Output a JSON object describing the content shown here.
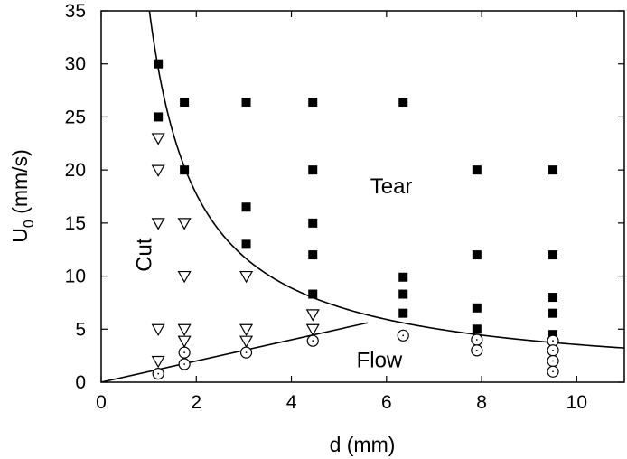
{
  "chart_data": {
    "type": "scatter",
    "xlabel": "d (mm)",
    "ylabel_main": "U",
    "ylabel_sub": "0",
    "ylabel_rest": " (mm/s)",
    "xlim": [
      0,
      11
    ],
    "ylim": [
      0,
      35
    ],
    "xticks": [
      0,
      2,
      4,
      6,
      8,
      10
    ],
    "yticks": [
      0,
      5,
      10,
      15,
      20,
      25,
      30,
      35
    ],
    "series": [
      {
        "marker": "filled-square",
        "points": [
          [
            1.2,
            30
          ],
          [
            1.2,
            25
          ],
          [
            1.75,
            26.4
          ],
          [
            1.75,
            20
          ],
          [
            3.05,
            26.4
          ],
          [
            3.05,
            16.5
          ],
          [
            3.05,
            13
          ],
          [
            4.45,
            26.4
          ],
          [
            4.45,
            20
          ],
          [
            4.45,
            15
          ],
          [
            4.45,
            12
          ],
          [
            4.45,
            8.3
          ],
          [
            6.35,
            26.4
          ],
          [
            6.35,
            9.9
          ],
          [
            6.35,
            8.3
          ],
          [
            6.35,
            6.5
          ],
          [
            7.9,
            20
          ],
          [
            7.9,
            12
          ],
          [
            7.9,
            7
          ],
          [
            7.9,
            5
          ],
          [
            9.5,
            20
          ],
          [
            9.5,
            12
          ],
          [
            9.5,
            8
          ],
          [
            9.5,
            6.5
          ],
          [
            9.5,
            4.5
          ]
        ]
      },
      {
        "marker": "open-triangle-down",
        "points": [
          [
            1.2,
            23
          ],
          [
            1.2,
            20
          ],
          [
            1.2,
            15
          ],
          [
            1.2,
            5
          ],
          [
            1.2,
            2
          ],
          [
            1.75,
            15
          ],
          [
            1.75,
            10
          ],
          [
            1.75,
            5
          ],
          [
            1.75,
            3.9
          ],
          [
            3.05,
            10
          ],
          [
            3.05,
            5
          ],
          [
            3.05,
            3.9
          ],
          [
            4.45,
            6.4
          ],
          [
            4.45,
            5
          ]
        ]
      },
      {
        "marker": "open-circle",
        "points": [
          [
            1.2,
            0.8
          ],
          [
            1.75,
            1.7
          ],
          [
            1.75,
            2.8
          ],
          [
            3.05,
            2.8
          ],
          [
            4.45,
            3.9
          ],
          [
            6.35,
            4.4
          ],
          [
            7.9,
            4
          ],
          [
            7.9,
            3
          ],
          [
            9.5,
            3.9
          ],
          [
            9.5,
            3
          ],
          [
            9.5,
            2
          ],
          [
            9.5,
            1
          ]
        ]
      }
    ],
    "curves": [
      {
        "kind": "hyperbola",
        "formula": "U0 = 35.5 / d",
        "k": 35.5,
        "x_range": [
          1.0,
          11
        ]
      },
      {
        "kind": "linear",
        "formula": "U0 = 1.0 * d",
        "slope": 1.0,
        "x_range": [
          0,
          5.6
        ]
      }
    ],
    "annotations": [
      {
        "text": "Tear",
        "x": 6.1,
        "y": 17.8
      },
      {
        "text": "Flow",
        "x": 5.85,
        "y": 1.4
      },
      {
        "text": "Cut",
        "x": 1.05,
        "y": 12,
        "rotate": -90
      }
    ]
  }
}
